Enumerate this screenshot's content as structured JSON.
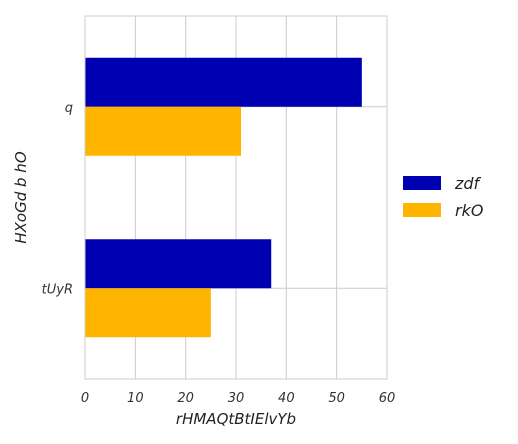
{
  "chart_data": {
    "type": "bar",
    "orientation": "horizontal",
    "categories": [
      "q",
      "tUyR"
    ],
    "series": [
      {
        "name": "zdf",
        "color": "#0000b3",
        "values": [
          55,
          37
        ]
      },
      {
        "name": "rkO",
        "color": "#ffb400",
        "values": [
          31,
          25
        ]
      }
    ],
    "xlabel": "rHMAQtBtIElvYb",
    "ylabel": "HXoGd b hO",
    "xlim": [
      0,
      60
    ],
    "xticks": [
      "0",
      "10",
      "20",
      "30",
      "40",
      "50",
      "60"
    ],
    "grid": true,
    "legend_position": "right"
  }
}
